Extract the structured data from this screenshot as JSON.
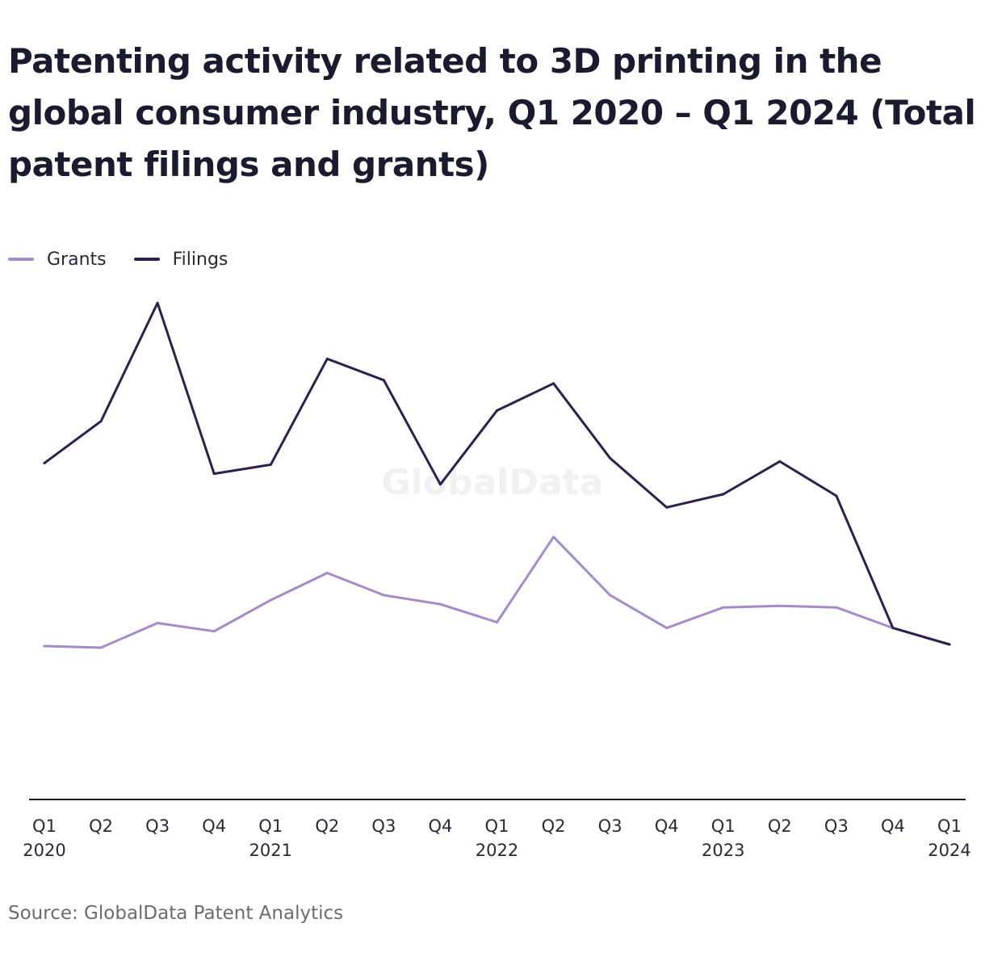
{
  "title": "Patenting activity related to 3D printing in the global consumer industry, Q1 2020 – Q1 2024 (Total patent filings and grants)",
  "watermark": "GlobalData",
  "source": "Source: GlobalData Patent Analytics",
  "colors": {
    "grants": "#a58bc9",
    "filings": "#2e1f4d",
    "axis": "#1b1a2e"
  },
  "chart_data": {
    "type": "line",
    "title": "Patenting activity related to 3D printing in the global consumer industry, Q1 2020 – Q1 2024 (Total patent filings and grants)",
    "categories": [
      "Q1 2020",
      "Q2",
      "Q3",
      "Q4",
      "Q1 2021",
      "Q2",
      "Q3",
      "Q4",
      "Q1 2022",
      "Q2",
      "Q3",
      "Q4",
      "Q1 2023",
      "Q2",
      "Q3",
      "Q4",
      "Q1 2024"
    ],
    "tick_labels": [
      [
        "Q1",
        "2020"
      ],
      [
        "Q2",
        ""
      ],
      [
        "Q3",
        ""
      ],
      [
        "Q4",
        ""
      ],
      [
        "Q1",
        "2021"
      ],
      [
        "Q2",
        ""
      ],
      [
        "Q3",
        ""
      ],
      [
        "Q4",
        ""
      ],
      [
        "Q1",
        "2022"
      ],
      [
        "Q2",
        ""
      ],
      [
        "Q3",
        ""
      ],
      [
        "Q4",
        ""
      ],
      [
        "Q1",
        "2023"
      ],
      [
        "Q2",
        ""
      ],
      [
        "Q3",
        ""
      ],
      [
        "Q4",
        ""
      ],
      [
        "Q1",
        "2024"
      ]
    ],
    "series": [
      {
        "name": "Grants",
        "color": "#a58bc9",
        "values": [
          187,
          185,
          215,
          205,
          243,
          276,
          249,
          238,
          216,
          320,
          249,
          209,
          234,
          236,
          234,
          209,
          189
        ]
      },
      {
        "name": "Filings",
        "color": "#2e1f4d",
        "values": [
          410,
          461,
          605,
          397,
          408,
          537,
          511,
          384,
          474,
          507,
          416,
          356,
          372,
          412,
          370,
          209,
          189
        ]
      }
    ],
    "ylim": [
      0,
      620
    ],
    "grid": false,
    "y_axis_visible": false,
    "legend_position": "top-left"
  }
}
